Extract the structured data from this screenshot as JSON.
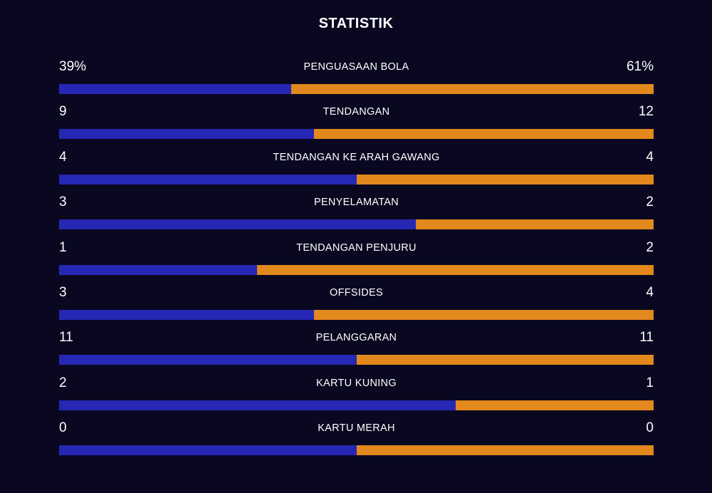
{
  "title": "STATISTIK",
  "colors": {
    "background": "#090820",
    "home_bar": "#2727b5",
    "away_bar": "#e3881c",
    "text": "#ffffff"
  },
  "stats": [
    {
      "label": "PENGUASAAN BOLA",
      "home": "39%",
      "away": "61%",
      "home_share": 0.39
    },
    {
      "label": "TENDANGAN",
      "home": "9",
      "away": "12",
      "home_share": 0.4286
    },
    {
      "label": "TENDANGAN KE ARAH GAWANG",
      "home": "4",
      "away": "4",
      "home_share": 0.5
    },
    {
      "label": "PENYELAMATAN",
      "home": "3",
      "away": "2",
      "home_share": 0.6
    },
    {
      "label": "TENDANGAN PENJURU",
      "home": "1",
      "away": "2",
      "home_share": 0.3333
    },
    {
      "label": "OFFSIDES",
      "home": "3",
      "away": "4",
      "home_share": 0.4286
    },
    {
      "label": "PELANGGARAN",
      "home": "11",
      "away": "11",
      "home_share": 0.5
    },
    {
      "label": "KARTU KUNING",
      "home": "2",
      "away": "1",
      "home_share": 0.6667
    },
    {
      "label": "KARTU MERAH",
      "home": "0",
      "away": "0",
      "home_share": 0.5
    }
  ]
}
